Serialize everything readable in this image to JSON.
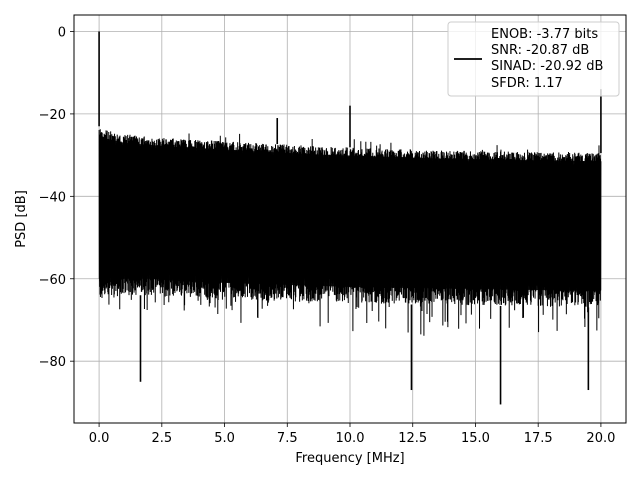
{
  "chart_data": {
    "type": "line",
    "title": "",
    "xlabel": "Frequency [MHz]",
    "ylabel": "PSD [dB]",
    "xlim": [
      -1.0,
      21.0
    ],
    "ylim": [
      -95,
      4
    ],
    "x_ticks": [
      0.0,
      2.5,
      5.0,
      7.5,
      10.0,
      12.5,
      15.0,
      17.5,
      20.0
    ],
    "x_tick_labels": [
      "0.0",
      "2.5",
      "5.0",
      "7.5",
      "10.0",
      "12.5",
      "15.0",
      "17.5",
      "20.0"
    ],
    "y_ticks": [
      0,
      -20,
      -40,
      -60,
      -80
    ],
    "y_tick_labels": [
      "0",
      "−20",
      "−40",
      "−60",
      "−80"
    ],
    "grid": true,
    "legend_position": "top-right",
    "line_color": "#000000",
    "series": [
      {
        "legend_lines": [
          "ENOB: -3.77 bits",
          "SNR: -20.87 dB",
          "SINAD: -20.92 dB",
          "SFDR: 1.17"
        ],
        "envelope": {
          "x": [
            0.0,
            0.3,
            1,
            2,
            3,
            4,
            5,
            6,
            7,
            8,
            9,
            10,
            11,
            12,
            13,
            14,
            15,
            16,
            17,
            18,
            19,
            20.0
          ],
          "upper": [
            -23,
            -24,
            -25,
            -25.5,
            -26,
            -26.3,
            -26.6,
            -27,
            -27.3,
            -27.6,
            -27.9,
            -28.1,
            -28.3,
            -28.5,
            -28.7,
            -28.9,
            -29,
            -29.1,
            -29.2,
            -29.3,
            -29.4,
            -29.5
          ],
          "lower": [
            -66,
            -65,
            -64,
            -64,
            -64.5,
            -64.8,
            -65,
            -65.2,
            -65.4,
            -65.6,
            -65.8,
            -66,
            -66.1,
            -66.2,
            -66.3,
            -66.4,
            -66.5,
            -66.6,
            -66.7,
            -66.8,
            -66.9,
            -67
          ]
        },
        "peaks": [
          {
            "x": 0.0,
            "y": 0
          },
          {
            "x": 7.1,
            "y": -21
          },
          {
            "x": 10.0,
            "y": -18
          },
          {
            "x": 20.0,
            "y": -14
          }
        ],
        "dips": [
          {
            "x": 1.65,
            "y": -85
          },
          {
            "x": 12.45,
            "y": -87
          },
          {
            "x": 16.0,
            "y": -90.5
          },
          {
            "x": 19.5,
            "y": -87
          }
        ]
      }
    ]
  }
}
